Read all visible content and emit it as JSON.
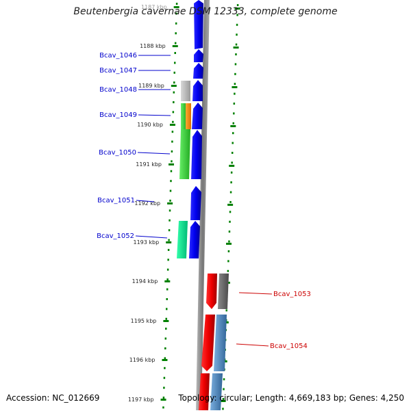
{
  "title": "Beutenbergia cavernae DSM 12333, complete genome",
  "accession": "Accession: NC_012669",
  "topology": "Topology: circular; Length: 4,669,183 bp; Genes: 4,250",
  "ruler": {
    "tick_labels": [
      "1187 kbp",
      "1188 kbp",
      "1189 kbp",
      "1190 kbp",
      "1191 kbp",
      "1192 kbp",
      "1193 kbp",
      "1194 kbp",
      "1195 kbp",
      "1196 kbp",
      "1197 kbp"
    ]
  },
  "genes_forward": [
    {
      "label": "Bcav_1046",
      "color": "#0000ee"
    },
    {
      "label": "Bcav_1047",
      "color": "#0000ee"
    },
    {
      "label": "Bcav_1048",
      "color": "#0000ee"
    },
    {
      "label": "Bcav_1049",
      "color": "#0000ee"
    },
    {
      "label": "Bcav_1050",
      "color": "#0000ee"
    },
    {
      "label": "Bcav_1051",
      "color": "#0000ee"
    },
    {
      "label": "Bcav_1052",
      "color": "#0000ee"
    }
  ],
  "genes_reverse": [
    {
      "label": "Bcav_1053",
      "color": "#ee0000"
    },
    {
      "label": "Bcav_1054",
      "color": "#ee0000"
    }
  ],
  "feature_colors": {
    "cds_forward": "#0000ee",
    "cds_reverse": "#ee0000",
    "grey": "#b0b0b0",
    "dark_grey": "#6a6a6a",
    "green": "#33cc33",
    "orange": "#ff8c00",
    "teal": "#00dd88",
    "steel_blue": "#4682b4",
    "backbone": "#888888",
    "label_forward": "#0000cc",
    "label_reverse": "#cc0000",
    "tick": "#008000"
  }
}
